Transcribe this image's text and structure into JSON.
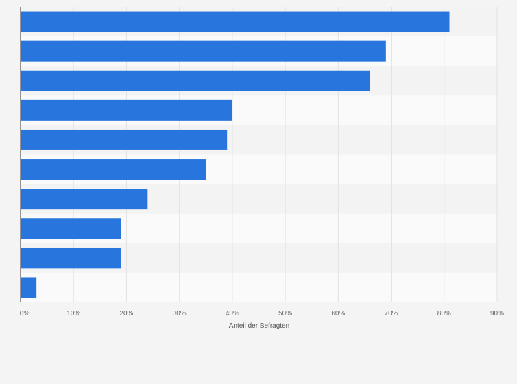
{
  "chart_data": {
    "type": "bar",
    "orientation": "horizontal",
    "categories": [
      "",
      "",
      "",
      "",
      "",
      "",
      "",
      "",
      "",
      ""
    ],
    "values": [
      81,
      69,
      66,
      40,
      39,
      35,
      24,
      19,
      19,
      3
    ],
    "xlabel": "Anteil der Befragten",
    "ylabel": "",
    "xlim": [
      0,
      90
    ],
    "xticks": [
      0,
      10,
      20,
      30,
      40,
      50,
      60,
      70,
      80,
      90
    ],
    "tick_labels": [
      "0%",
      "10%",
      "20%",
      "30%",
      "40%",
      "50%",
      "60%",
      "70%",
      "80%",
      "90%"
    ],
    "grid": true,
    "legend": "none",
    "colors": {
      "bar": "#2876dd",
      "background": "#f4f4f4",
      "band_light": "#fafafa",
      "band_dark": "#f3f3f3",
      "grid": "#e2e2e2",
      "axis": "#333333"
    }
  }
}
